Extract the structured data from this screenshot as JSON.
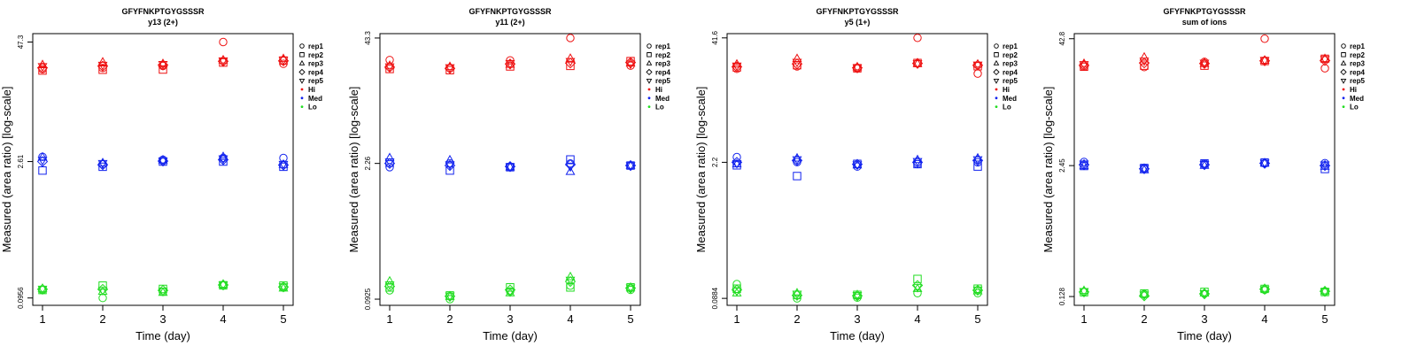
{
  "figure": {
    "legend_position": "right",
    "xscale": "linear",
    "yscale": "log"
  },
  "colors": {
    "Hi": "#ee1111",
    "Med": "#1122ee",
    "Lo": "#22dd22",
    "axis": "#000000"
  },
  "legend": {
    "reps": [
      {
        "label": "rep1",
        "marker": "circle"
      },
      {
        "label": "rep2",
        "marker": "square"
      },
      {
        "label": "rep3",
        "marker": "triangle-up"
      },
      {
        "label": "rep4",
        "marker": "diamond"
      },
      {
        "label": "rep5",
        "marker": "triangle-down"
      }
    ],
    "groups": [
      {
        "label": "Hi",
        "color": "#ee1111"
      },
      {
        "label": "Med",
        "color": "#1122ee"
      },
      {
        "label": "Lo",
        "color": "#22dd22"
      }
    ]
  },
  "chart_data": [
    {
      "type": "scatter",
      "title": "GFYFNKPTGYGSSSR",
      "subtitle": "y13 (2+)",
      "xlabel": "Time (day)",
      "ylabel": "Measured (area ratio) [log-scale]",
      "x_ticks": [
        "1",
        "2",
        "3",
        "4",
        "5"
      ],
      "y_ticks": [
        {
          "value": 0.0956,
          "label": "0.0956"
        },
        {
          "value": 2.61,
          "label": "2.61"
        },
        {
          "value": 47.3,
          "label": "47.3"
        }
      ],
      "ylim": [
        0.08,
        58
      ],
      "series": [
        {
          "name": "Hi",
          "rep1": [
            24.5,
            25.2,
            26.5,
            47.3,
            27.9
          ],
          "rep2": [
            23.7,
            24.2,
            24.3,
            28.8,
            30.2
          ],
          "rep3": [
            27.2,
            29.0,
            27.9,
            30.5,
            31.5
          ],
          "rep4": [
            25.3,
            26.4,
            27.1,
            29.7,
            30.0
          ],
          "rep5": [
            26.2,
            27.1,
            27.6,
            30.1,
            30.7
          ]
        },
        {
          "name": "Med",
          "rep1": [
            2.93,
            2.44,
            2.73,
            2.85,
            2.85
          ],
          "rep2": [
            2.1,
            2.3,
            2.61,
            2.61,
            2.3
          ],
          "rep3": [
            2.9,
            2.52,
            2.7,
            2.93,
            2.42
          ],
          "rep4": [
            2.61,
            2.42,
            2.64,
            2.73,
            2.4
          ],
          "rep5": [
            2.7,
            2.5,
            2.65,
            2.8,
            2.45
          ]
        },
        {
          "name": "Lo",
          "rep1": [
            0.116,
            0.0956,
            0.111,
            0.129,
            0.123
          ],
          "rep2": [
            0.116,
            0.129,
            0.119,
            0.13,
            0.129
          ],
          "rep3": [
            0.12,
            0.112,
            0.109,
            0.133,
            0.121
          ],
          "rep4": [
            0.118,
            0.118,
            0.115,
            0.131,
            0.125
          ],
          "rep5": [
            0.119,
            0.115,
            0.113,
            0.132,
            0.126
          ]
        }
      ]
    },
    {
      "type": "scatter",
      "title": "GFYFNKPTGYGSSSR",
      "subtitle": "y11 (2+)",
      "xlabel": "Time (day)",
      "ylabel": "Measured (area ratio) [log-scale]",
      "x_ticks": [
        "1",
        "2",
        "3",
        "4",
        "5"
      ],
      "y_ticks": [
        {
          "value": 0.0925,
          "label": "0.0925"
        },
        {
          "value": 2.26,
          "label": "2.26"
        },
        {
          "value": 43.3,
          "label": "43.3"
        }
      ],
      "ylim": [
        0.08,
        48
      ],
      "series": [
        {
          "name": "Hi",
          "rep1": [
            25.8,
            21.3,
            25.6,
            43.3,
            22.6
          ],
          "rep2": [
            20.9,
            20.3,
            22.2,
            22.5,
            25.1
          ],
          "rep3": [
            22.6,
            22.0,
            23.2,
            26.7,
            23.9
          ],
          "rep4": [
            21.8,
            21.2,
            23.5,
            24.0,
            24.3
          ],
          "rep5": [
            22.1,
            21.6,
            23.8,
            25.0,
            23.5
          ]
        },
        {
          "name": "Med",
          "rep1": [
            2.07,
            2.26,
            2.07,
            2.26,
            2.15
          ],
          "rep2": [
            2.3,
            1.91,
            2.07,
            2.48,
            2.15
          ],
          "rep3": [
            2.57,
            2.44,
            2.07,
            1.86,
            2.15
          ],
          "rep4": [
            2.26,
            2.15,
            2.1,
            2.2,
            2.15
          ],
          "rep5": [
            2.35,
            2.2,
            2.09,
            2.1,
            2.15
          ]
        },
        {
          "name": "Lo",
          "rep1": [
            0.114,
            0.0925,
            0.111,
            0.127,
            0.115
          ],
          "rep2": [
            0.122,
            0.101,
            0.122,
            0.122,
            0.122
          ],
          "rep3": [
            0.141,
            0.098,
            0.107,
            0.156,
            0.122
          ],
          "rep4": [
            0.125,
            0.099,
            0.115,
            0.14,
            0.12
          ],
          "rep5": [
            0.13,
            0.1,
            0.11,
            0.145,
            0.121
          ]
        }
      ]
    },
    {
      "type": "scatter",
      "title": "GFYFNKPTGYGSSSR",
      "subtitle": "y5 (1+)",
      "xlabel": "Time (day)",
      "ylabel": "Measured (area ratio) [log-scale]",
      "x_ticks": [
        "1",
        "2",
        "3",
        "4",
        "5"
      ],
      "y_ticks": [
        {
          "value": 0.0884,
          "label": "0.0884"
        },
        {
          "value": 2.2,
          "label": "2.2"
        },
        {
          "value": 41.6,
          "label": "41.6"
        }
      ],
      "ylim": [
        0.075,
        46
      ],
      "series": [
        {
          "name": "Hi",
          "rep1": [
            20.0,
            21.2,
            20.2,
            41.6,
            17.9
          ],
          "rep2": [
            20.7,
            21.8,
            20.3,
            23.0,
            21.3
          ],
          "rep3": [
            22.3,
            25.4,
            20.9,
            22.6,
            22.3
          ],
          "rep4": [
            21.0,
            22.5,
            20.5,
            22.8,
            21.8
          ],
          "rep5": [
            21.5,
            23.5,
            20.6,
            22.7,
            22.0
          ]
        },
        {
          "name": "Med",
          "rep1": [
            2.49,
            2.21,
            1.99,
            2.11,
            2.2
          ],
          "rep2": [
            2.05,
            1.59,
            2.12,
            2.11,
            1.99
          ],
          "rep3": [
            2.11,
            2.42,
            2.06,
            2.33,
            2.42
          ],
          "rep4": [
            2.2,
            2.3,
            2.1,
            2.2,
            2.3
          ],
          "rep5": [
            2.15,
            2.35,
            2.08,
            2.25,
            2.35
          ]
        },
        {
          "name": "Lo",
          "rep1": [
            0.124,
            0.0884,
            0.09,
            0.1,
            0.1
          ],
          "rep2": [
            0.111,
            0.096,
            0.096,
            0.14,
            0.111
          ],
          "rep3": [
            0.1,
            0.1,
            0.096,
            0.111,
            0.105
          ],
          "rep4": [
            0.108,
            0.095,
            0.094,
            0.12,
            0.107
          ],
          "rep5": [
            0.105,
            0.098,
            0.095,
            0.115,
            0.108
          ]
        }
      ]
    },
    {
      "type": "scatter",
      "title": "GFYFNKPTGYGSSSR",
      "subtitle": "sum of ions",
      "xlabel": "Time (day)",
      "ylabel": "Measured (area ratio) [log-scale]",
      "x_ticks": [
        "1",
        "2",
        "3",
        "4",
        "5"
      ],
      "y_ticks": [
        {
          "value": 0.128,
          "label": "0.128"
        },
        {
          "value": 2.45,
          "label": "2.45"
        },
        {
          "value": 42.8,
          "label": "42.8"
        }
      ],
      "ylim": [
        0.105,
        48
      ],
      "series": [
        {
          "name": "Hi",
          "rep1": [
            22.8,
            22.6,
            25.4,
            42.8,
            22.0
          ],
          "rep2": [
            22.8,
            23.3,
            23.3,
            25.9,
            27.2
          ],
          "rep3": [
            24.4,
            28.1,
            24.4,
            26.2,
            27.2
          ],
          "rep4": [
            23.5,
            24.8,
            24.5,
            26.0,
            26.2
          ],
          "rep5": [
            24.0,
            26.0,
            24.8,
            26.3,
            27.0
          ]
        },
        {
          "name": "Med",
          "rep1": [
            2.66,
            2.32,
            2.57,
            2.57,
            2.59
          ],
          "rep2": [
            2.43,
            2.32,
            2.57,
            2.62,
            2.27
          ],
          "rep3": [
            2.43,
            2.22,
            2.45,
            2.59,
            2.4
          ],
          "rep4": [
            2.5,
            2.28,
            2.5,
            2.58,
            2.45
          ],
          "rep5": [
            2.55,
            2.3,
            2.52,
            2.6,
            2.5
          ]
        },
        {
          "name": "Lo",
          "rep1": [
            0.143,
            0.135,
            0.137,
            0.149,
            0.143
          ],
          "rep2": [
            0.141,
            0.137,
            0.142,
            0.152,
            0.142
          ],
          "rep3": [
            0.146,
            0.135,
            0.138,
            0.153,
            0.145
          ],
          "rep4": [
            0.142,
            0.13,
            0.136,
            0.151,
            0.144
          ],
          "rep5": [
            0.144,
            0.133,
            0.137,
            0.15,
            0.143
          ]
        }
      ]
    }
  ]
}
